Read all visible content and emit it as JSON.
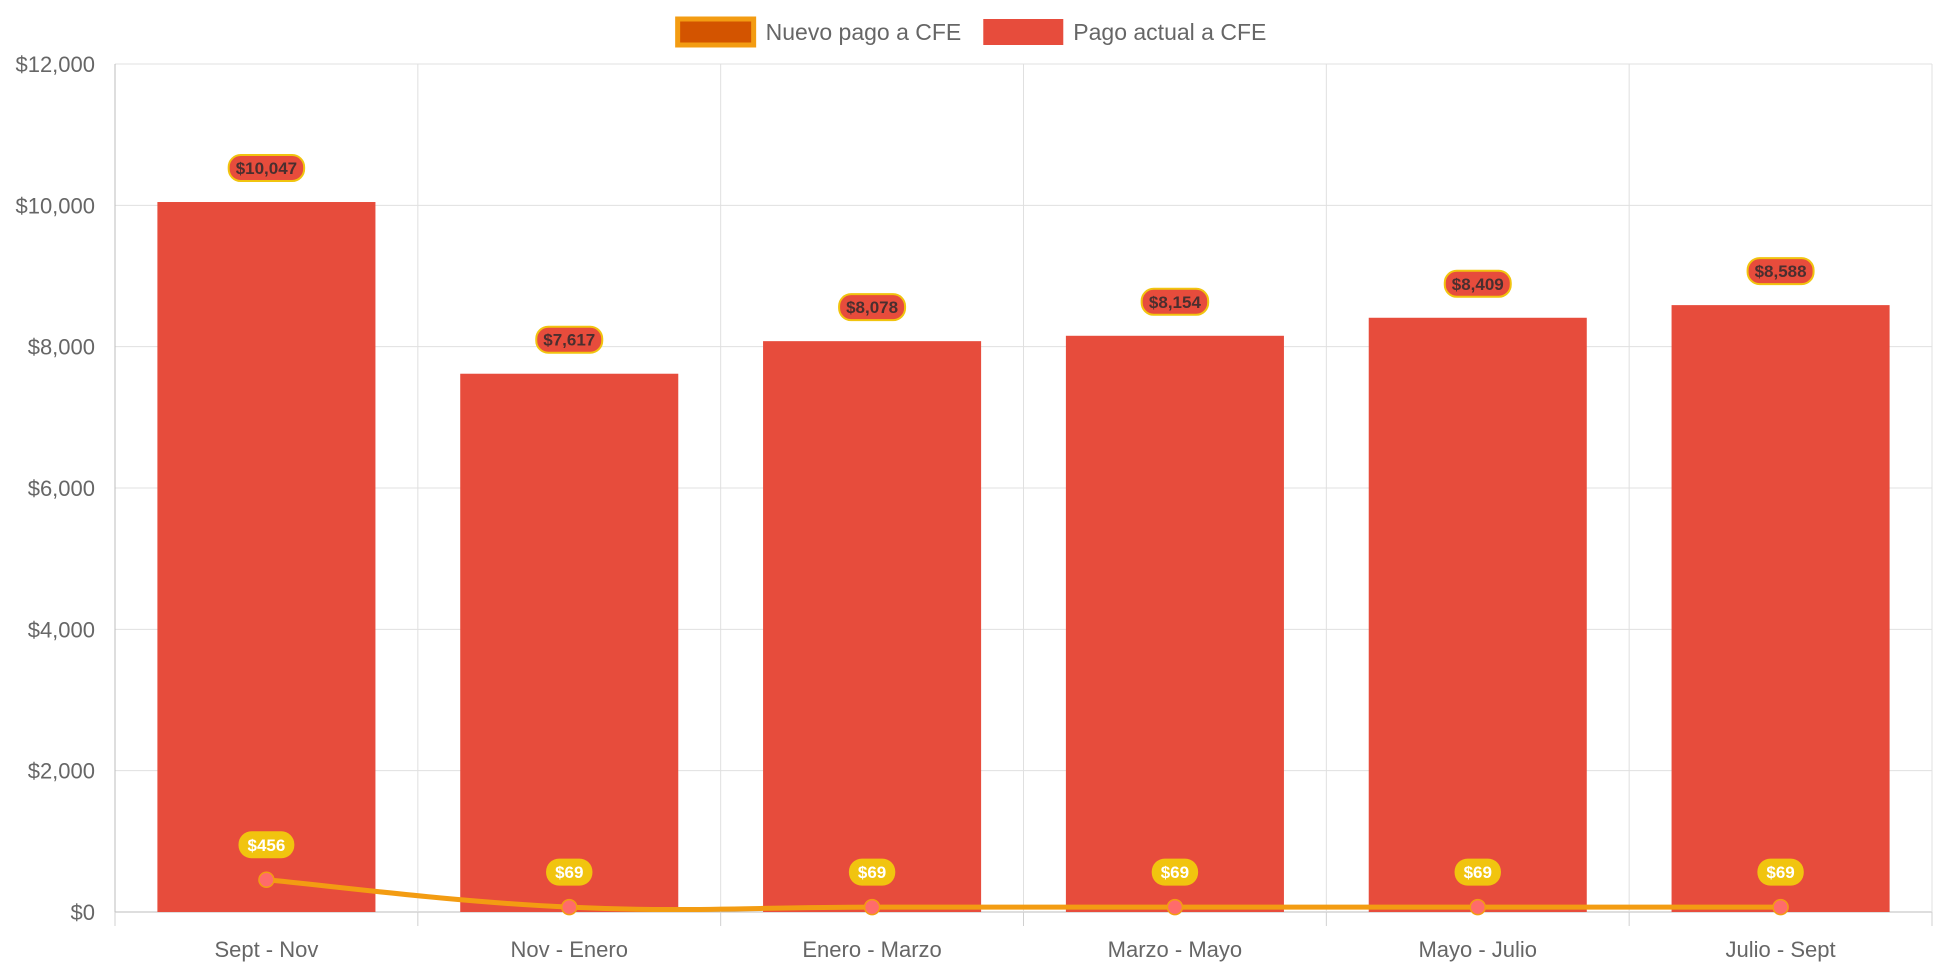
{
  "chart_data": {
    "type": "bar",
    "categories": [
      "Sept - Nov",
      "Nov - Enero",
      "Enero - Marzo",
      "Marzo - Mayo",
      "Mayo - Julio",
      "Julio - Sept"
    ],
    "series": [
      {
        "name": "Nuevo pago a CFE",
        "type": "line",
        "values": [
          456,
          69,
          69,
          69,
          69,
          69
        ],
        "data_labels": [
          "$456",
          "$69",
          "$69",
          "$69",
          "$69",
          "$69"
        ],
        "color": "#f39c12",
        "legend_fill": "#d35400",
        "point_color": "#ff6b6b",
        "label_bg": "#f1c40f"
      },
      {
        "name": "Pago actual a CFE",
        "type": "bar",
        "values": [
          10047,
          7617,
          8078,
          8154,
          8409,
          8588
        ],
        "data_labels": [
          "$10,047",
          "$7,617",
          "$8,078",
          "$8,154",
          "$8,409",
          "$8,588"
        ],
        "color": "#e74c3c",
        "label_border": "#f1c40f"
      }
    ],
    "y_ticks": [
      "$0",
      "$2,000",
      "$4,000",
      "$6,000",
      "$8,000",
      "$10,000",
      "$12,000"
    ],
    "ylim": [
      0,
      12000
    ],
    "grid": true,
    "legend_position": "top",
    "title": "",
    "xlabel": "",
    "ylabel": ""
  }
}
